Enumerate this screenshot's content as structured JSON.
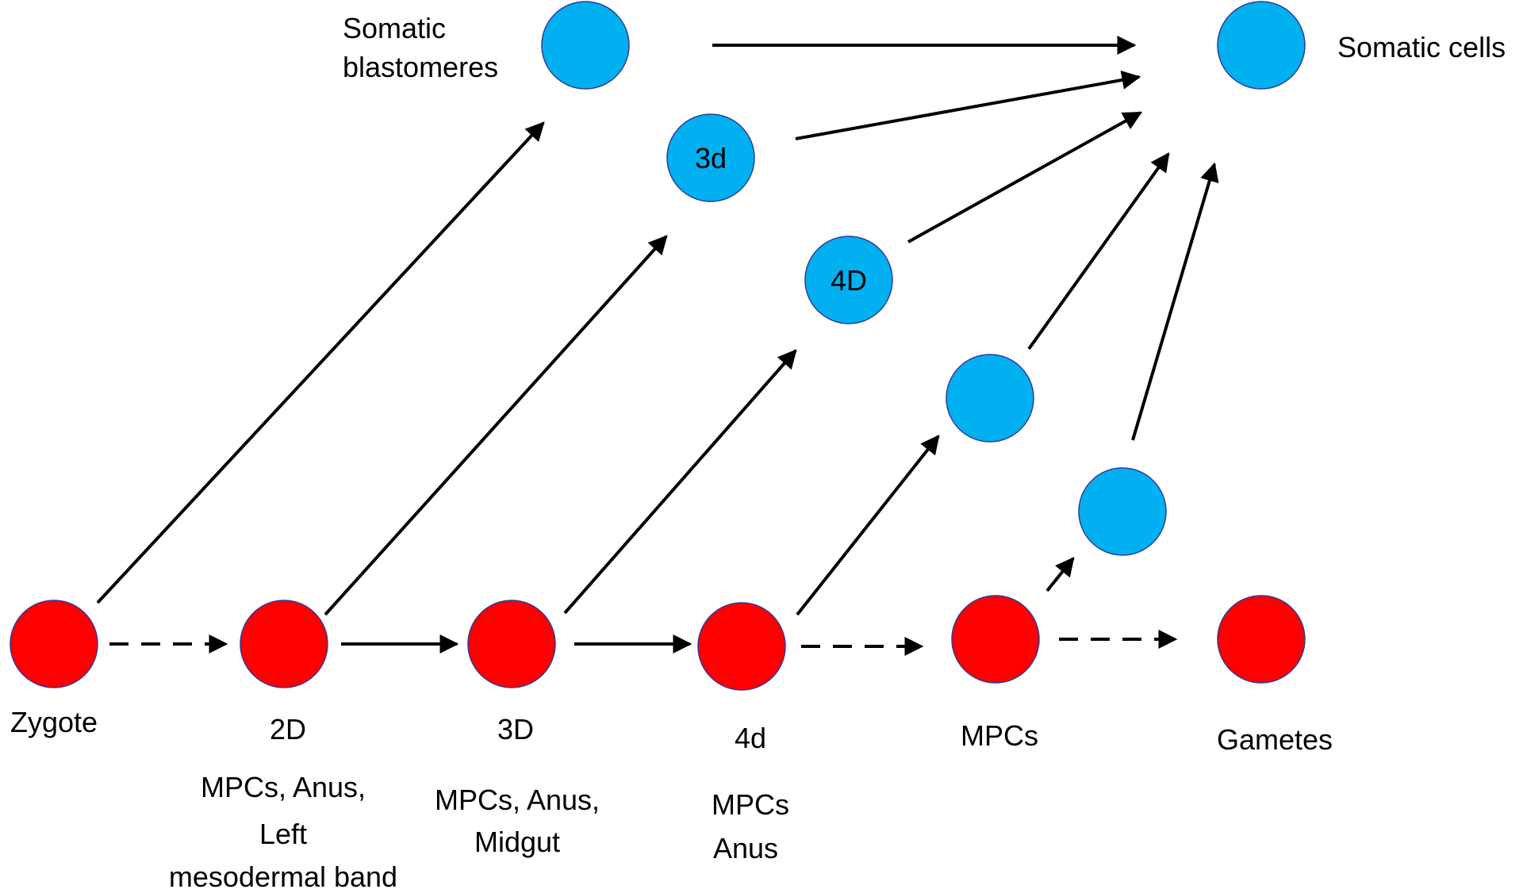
{
  "colors": {
    "germline": "#FF0000",
    "somatic": "#00B0F0",
    "outline": "#2F3C9A",
    "arrow": "#000000",
    "background": "#FFFFFF"
  },
  "nodes": {
    "zygote": {
      "inner": "",
      "label": [
        "Zygote"
      ]
    },
    "n2D": {
      "inner": "",
      "label": [
        "2D",
        "MPCs, Anus,",
        "Left",
        "mesodermal band"
      ]
    },
    "n3D": {
      "inner": "",
      "label": [
        "3D",
        "MPCs, Anus,",
        "Midgut"
      ]
    },
    "n4d": {
      "inner": "",
      "label": [
        "4d",
        "MPCs",
        "Anus"
      ]
    },
    "mpcs": {
      "inner": "",
      "label": [
        "MPCs"
      ]
    },
    "gametes": {
      "inner": "",
      "label": [
        "Gametes"
      ]
    },
    "somatic_blastomeres": {
      "inner": "",
      "label": [
        "Somatic",
        "blastomeres"
      ]
    },
    "s3d": {
      "inner": "3d",
      "label": []
    },
    "s4D": {
      "inner": "4D",
      "label": []
    },
    "s_a": {
      "inner": "",
      "label": []
    },
    "s_b": {
      "inner": "",
      "label": []
    },
    "somatic_cells": {
      "inner": "",
      "label": [
        "Somatic cells"
      ]
    }
  },
  "edges": [
    {
      "from": "zygote",
      "to": "n2D",
      "style": "dashed"
    },
    {
      "from": "n2D",
      "to": "n3D",
      "style": "solid"
    },
    {
      "from": "n3D",
      "to": "n4d",
      "style": "solid"
    },
    {
      "from": "n4d",
      "to": "mpcs",
      "style": "dashed"
    },
    {
      "from": "mpcs",
      "to": "gametes",
      "style": "dashed"
    },
    {
      "from": "zygote",
      "to": "somatic_blastomeres",
      "style": "solid"
    },
    {
      "from": "n2D",
      "to": "s3d",
      "style": "solid"
    },
    {
      "from": "n3D",
      "to": "s4D",
      "style": "solid"
    },
    {
      "from": "n4d",
      "to": "s_a",
      "style": "solid"
    },
    {
      "from": "mpcs",
      "to": "s_b",
      "style": "solid"
    },
    {
      "from": "somatic_blastomeres",
      "to": "somatic_cells",
      "style": "solid"
    },
    {
      "from": "s3d",
      "to": "somatic_cells",
      "style": "solid"
    },
    {
      "from": "s4D",
      "to": "somatic_cells",
      "style": "solid"
    },
    {
      "from": "s_a",
      "to": "somatic_cells",
      "style": "solid"
    },
    {
      "from": "s_b",
      "to": "somatic_cells",
      "style": "solid"
    }
  ]
}
